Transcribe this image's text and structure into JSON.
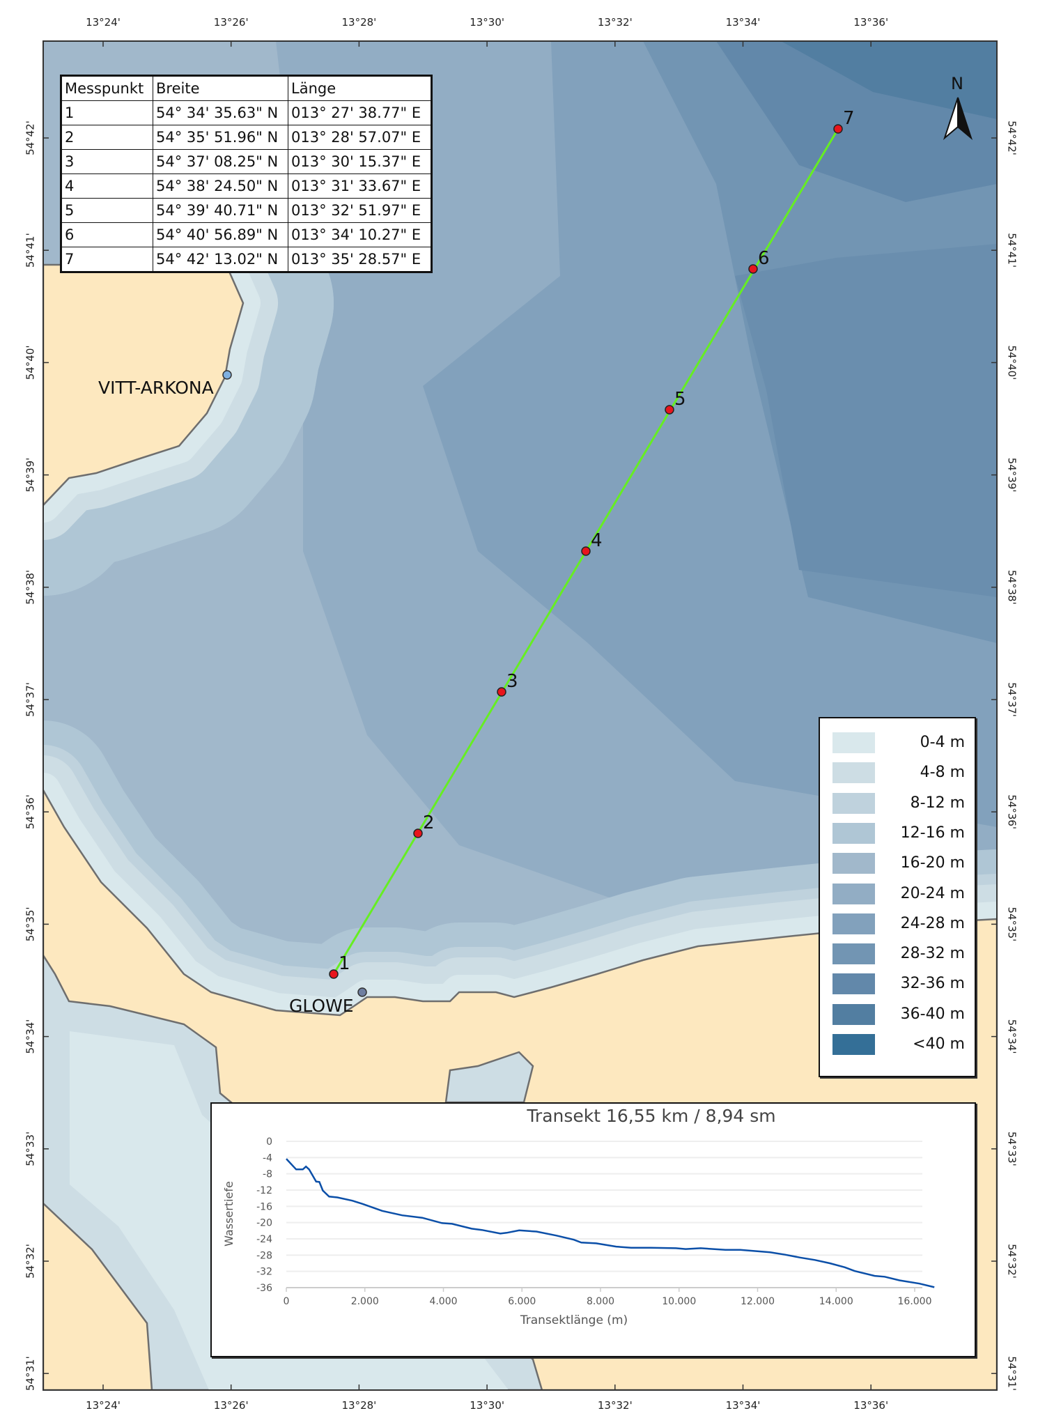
{
  "map": {
    "lon_ticks": [
      "13°24'",
      "13°26'",
      "13°28'",
      "13°30'",
      "13°32'",
      "13°34'",
      "13°36'"
    ],
    "lat_ticks": [
      "54°42'",
      "54°41'",
      "54°40'",
      "54°39'",
      "54°38'",
      "54°37'",
      "54°36'",
      "54°35'",
      "54°34'",
      "54°33'",
      "54°32'",
      "54°31'"
    ],
    "north_label": "N",
    "places": [
      {
        "name": "VITT-ARKONA",
        "dot_color": "#7fb0e0"
      },
      {
        "name": "GLOWE",
        "dot_color": "#6f7fa0"
      }
    ],
    "transect_color": "#66ee22",
    "point_color": "#e8141c",
    "land_color": "#fde8bf",
    "points": [
      "1",
      "2",
      "3",
      "4",
      "5",
      "6",
      "7"
    ]
  },
  "table": {
    "headers": [
      "Messpunkt",
      "Breite",
      "Länge"
    ],
    "rows": [
      [
        "1",
        "54° 34' 35.63\" N",
        "013° 27' 38.77\" E"
      ],
      [
        "2",
        "54° 35' 51.96\" N",
        "013° 28' 57.07\" E"
      ],
      [
        "3",
        "54° 37' 08.25\" N",
        "013° 30' 15.37\" E"
      ],
      [
        "4",
        "54° 38' 24.50\" N",
        "013° 31' 33.67\" E"
      ],
      [
        "5",
        "54° 39' 40.71\" N",
        "013° 32' 51.97\" E"
      ],
      [
        "6",
        "54° 40' 56.89\" N",
        "013° 34' 10.27\" E"
      ],
      [
        "7",
        "54° 42' 13.02\" N",
        "013° 35' 28.57\" E"
      ]
    ]
  },
  "legend": [
    {
      "label": "0-4 m",
      "color": "#d9e8ec"
    },
    {
      "label": "4-8 m",
      "color": "#cddde4"
    },
    {
      "label": "8-12 m",
      "color": "#bfd2dd"
    },
    {
      "label": "12-16 m",
      "color": "#afc6d5"
    },
    {
      "label": "16-20 m",
      "color": "#a1b8cb"
    },
    {
      "label": "20-24 m",
      "color": "#92adc4"
    },
    {
      "label": "24-28 m",
      "color": "#82a1bc"
    },
    {
      "label": "28-32 m",
      "color": "#7295b3"
    },
    {
      "label": "32-36 m",
      "color": "#6288aa"
    },
    {
      "label": "36-40 m",
      "color": "#527ea1"
    },
    {
      "label": "<40 m",
      "color": "#346f97"
    }
  ],
  "chart_data": {
    "type": "line",
    "title": "Transekt 16,55 km / 8,94 sm",
    "xlabel": "Transektlänge (m)",
    "ylabel": "Wassertiefe",
    "xlim": [
      0,
      16550
    ],
    "ylim": [
      -36,
      0
    ],
    "x_ticks": [
      "0",
      "2.000",
      "4.000",
      "6.000",
      "8.000",
      "10.000",
      "12.000",
      "14.000",
      "16.000"
    ],
    "y_ticks": [
      "0",
      "-4",
      "-8",
      "-12",
      "-16",
      "-20",
      "-24",
      "-28",
      "-32",
      "-36"
    ],
    "grid": true,
    "line_color": "#0b4fa8",
    "x": [
      0,
      250,
      420,
      500,
      580,
      760,
      840,
      930,
      1090,
      1300,
      1680,
      1940,
      2440,
      2950,
      3460,
      3960,
      4220,
      4720,
      4980,
      5450,
      5610,
      5930,
      6370,
      6880,
      7320,
      7510,
      7890,
      8400,
      8780,
      9280,
      9920,
      10170,
      10550,
      11180,
      11560,
      11940,
      12320,
      12700,
      13080,
      13460,
      13840,
      14220,
      14470,
      14980,
      15230,
      15610,
      16120,
      16500
    ],
    "y": [
      -4.3,
      -6.9,
      -6.9,
      -6.2,
      -6.9,
      -9.9,
      -10,
      -12.1,
      -13.6,
      -13.8,
      -14.6,
      -15.4,
      -17.1,
      -18.2,
      -18.8,
      -20.1,
      -20.3,
      -21.5,
      -21.8,
      -22.7,
      -22.5,
      -21.9,
      -22.2,
      -23.2,
      -24.2,
      -24.9,
      -25.1,
      -25.9,
      -26.2,
      -26.2,
      -26.3,
      -26.5,
      -26.3,
      -26.7,
      -26.7,
      -27,
      -27.3,
      -27.9,
      -28.6,
      -29.2,
      -30,
      -31,
      -31.9,
      -33.1,
      -33.3,
      -34.2,
      -35,
      -35.9
    ]
  }
}
